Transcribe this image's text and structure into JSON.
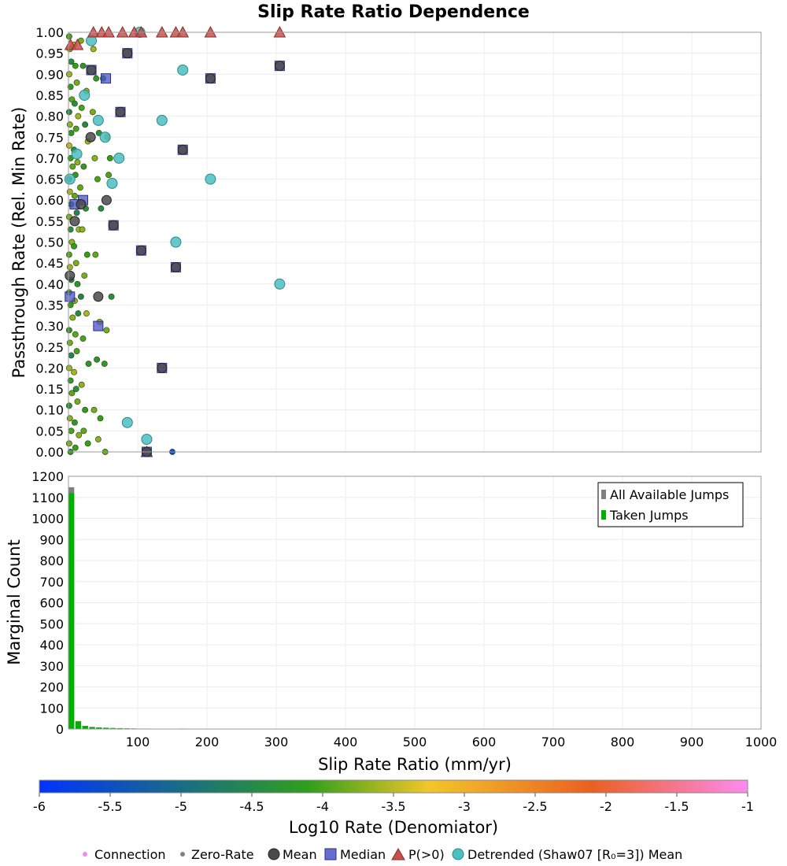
{
  "title": "Slip Rate Ratio Dependence",
  "colors": {
    "grid": "#ececec",
    "frame": "#9a9a9a",
    "mean": "#4a4a4a",
    "median": "#4b52c8",
    "p_gt_0": "#c8504c",
    "detrended": "#4bbec0",
    "connection": "#ef8bef",
    "zero_rate": "#808080",
    "all_jumps": "#808080",
    "taken_jumps": "#00b000",
    "colorbar": [
      "#0033ff",
      "#2fa01a",
      "#f2c62a",
      "#ea6020",
      "#ff8af0"
    ]
  },
  "chart_data": [
    {
      "type": "scatter",
      "title": "Slip Rate Ratio Dependence",
      "ylabel": "Passthrough Rate (Rel. Min Rate)",
      "xlim": [
        0,
        1000
      ],
      "ylim": [
        0,
        1
      ],
      "yticks": [
        "0.00",
        "0.05",
        "0.10",
        "0.15",
        "0.20",
        "0.25",
        "0.30",
        "0.35",
        "0.40",
        "0.45",
        "0.50",
        "0.55",
        "0.60",
        "0.65",
        "0.70",
        "0.75",
        "0.80",
        "0.85",
        "0.90",
        "0.95",
        "1.00"
      ],
      "series": [
        {
          "name": "Mean",
          "points": [
            [
              2,
              0.42
            ],
            [
              9,
              0.55
            ],
            [
              18,
              0.59
            ],
            [
              32,
              0.75
            ],
            [
              33,
              0.91
            ],
            [
              43,
              0.37
            ],
            [
              55,
              0.6
            ],
            [
              65,
              0.54
            ],
            [
              75,
              0.81
            ],
            [
              85,
              0.95
            ],
            [
              105,
              0.48
            ],
            [
              135,
              0.2
            ],
            [
              155,
              0.44
            ],
            [
              165,
              0.72
            ],
            [
              205,
              0.89
            ],
            [
              305,
              0.92
            ],
            [
              113,
              0.0
            ]
          ]
        },
        {
          "name": "Median",
          "points": [
            [
              2,
              0.37
            ],
            [
              9,
              0.59
            ],
            [
              21,
              0.6
            ],
            [
              33,
              0.91
            ],
            [
              43,
              0.3
            ],
            [
              54,
              0.89
            ],
            [
              65,
              0.54
            ],
            [
              75,
              0.81
            ],
            [
              85,
              0.95
            ],
            [
              105,
              0.48
            ],
            [
              135,
              0.2
            ],
            [
              155,
              0.44
            ],
            [
              165,
              0.72
            ],
            [
              205,
              0.89
            ],
            [
              305,
              0.92
            ],
            [
              113,
              0.0
            ]
          ]
        },
        {
          "name": "P(>0)",
          "points": [
            [
              3,
              0.97
            ],
            [
              13,
              0.97
            ],
            [
              36,
              1.0
            ],
            [
              48,
              1.0
            ],
            [
              58,
              1.0
            ],
            [
              78,
              1.0
            ],
            [
              95,
              1.0
            ],
            [
              105,
              1.0
            ],
            [
              135,
              1.0
            ],
            [
              155,
              1.0
            ],
            [
              165,
              1.0
            ],
            [
              205,
              1.0
            ],
            [
              305,
              1.0
            ],
            [
              113,
              0.0
            ]
          ]
        },
        {
          "name": "Detrended (Shaw07 [R₀=3]) Mean",
          "points": [
            [
              2,
              0.65
            ],
            [
              12,
              0.71
            ],
            [
              23,
              0.85
            ],
            [
              33,
              0.98
            ],
            [
              43,
              0.79
            ],
            [
              53,
              0.75
            ],
            [
              63,
              0.64
            ],
            [
              73,
              0.7
            ],
            [
              85,
              0.07
            ],
            [
              103,
              1.0
            ],
            [
              113,
              0.03
            ],
            [
              135,
              0.79
            ],
            [
              155,
              0.5
            ],
            [
              165,
              0.91
            ],
            [
              205,
              0.65
            ],
            [
              305,
              0.4
            ]
          ]
        }
      ],
      "colored_points": [
        [
          1,
          0.99,
          -4.0
        ],
        [
          2,
          0.96,
          -3.8
        ],
        [
          4,
          0.93,
          -4.5
        ],
        [
          1,
          0.9,
          -3.6
        ],
        [
          3,
          0.87,
          -4.2
        ],
        [
          5,
          0.84,
          -3.9
        ],
        [
          1,
          0.81,
          -4.6
        ],
        [
          2,
          0.78,
          -3.7
        ],
        [
          4,
          0.76,
          -4.3
        ],
        [
          1,
          0.73,
          -3.5
        ],
        [
          3,
          0.7,
          -4.1
        ],
        [
          6,
          0.68,
          -3.9
        ],
        [
          1,
          0.65,
          -4.7
        ],
        [
          2,
          0.62,
          -3.6
        ],
        [
          4,
          0.59,
          -4.2
        ],
        [
          1,
          0.56,
          -3.8
        ],
        [
          3,
          0.53,
          -4.4
        ],
        [
          5,
          0.5,
          -3.7
        ],
        [
          1,
          0.47,
          -4.0
        ],
        [
          2,
          0.44,
          -3.6
        ],
        [
          4,
          0.41,
          -4.5
        ],
        [
          1,
          0.38,
          -3.9
        ],
        [
          3,
          0.35,
          -4.1
        ],
        [
          6,
          0.32,
          -3.7
        ],
        [
          1,
          0.29,
          -4.3
        ],
        [
          2,
          0.26,
          -3.8
        ],
        [
          4,
          0.23,
          -4.6
        ],
        [
          1,
          0.2,
          -3.6
        ],
        [
          3,
          0.17,
          -4.2
        ],
        [
          5,
          0.14,
          -3.9
        ],
        [
          1,
          0.11,
          -4.4
        ],
        [
          2,
          0.08,
          -3.7
        ],
        [
          4,
          0.05,
          -4.0
        ],
        [
          1,
          0.02,
          -3.8
        ],
        [
          3,
          0.0,
          -4.3
        ],
        [
          8,
          0.97,
          -3.5
        ],
        [
          10,
          0.92,
          -4.1
        ],
        [
          12,
          0.88,
          -3.8
        ],
        [
          9,
          0.83,
          -4.4
        ],
        [
          14,
          0.8,
          -3.6
        ],
        [
          11,
          0.77,
          -4.0
        ],
        [
          8,
          0.72,
          -4.5
        ],
        [
          13,
          0.69,
          -3.7
        ],
        [
          10,
          0.66,
          -4.2
        ],
        [
          9,
          0.61,
          -3.9
        ],
        [
          12,
          0.57,
          -4.6
        ],
        [
          15,
          0.53,
          -3.6
        ],
        [
          8,
          0.49,
          -4.1
        ],
        [
          11,
          0.45,
          -3.8
        ],
        [
          13,
          0.4,
          -4.3
        ],
        [
          9,
          0.36,
          -3.7
        ],
        [
          14,
          0.33,
          -4.5
        ],
        [
          10,
          0.28,
          -3.9
        ],
        [
          12,
          0.24,
          -4.0
        ],
        [
          8,
          0.19,
          -3.6
        ],
        [
          11,
          0.15,
          -4.4
        ],
        [
          13,
          0.12,
          -3.8
        ],
        [
          9,
          0.07,
          -4.2
        ],
        [
          15,
          0.04,
          -3.7
        ],
        [
          10,
          0.01,
          -4.1
        ],
        [
          18,
          0.98,
          -3.8
        ],
        [
          21,
          0.92,
          -4.3
        ],
        [
          26,
          0.86,
          -3.7
        ],
        [
          19,
          0.82,
          -4.0
        ],
        [
          24,
          0.78,
          -4.5
        ],
        [
          28,
          0.74,
          -3.6
        ],
        [
          22,
          0.68,
          -4.2
        ],
        [
          17,
          0.63,
          -3.9
        ],
        [
          25,
          0.58,
          -4.4
        ],
        [
          20,
          0.53,
          -3.7
        ],
        [
          27,
          0.47,
          -4.1
        ],
        [
          23,
          0.42,
          -3.8
        ],
        [
          18,
          0.37,
          -4.6
        ],
        [
          26,
          0.33,
          -3.6
        ],
        [
          21,
          0.27,
          -4.0
        ],
        [
          29,
          0.21,
          -4.3
        ],
        [
          19,
          0.16,
          -3.7
        ],
        [
          24,
          0.1,
          -4.2
        ],
        [
          22,
          0.05,
          -3.9
        ],
        [
          28,
          0.02,
          -4.1
        ],
        [
          36,
          0.96,
          -3.6
        ],
        [
          40,
          0.89,
          -4.2
        ],
        [
          35,
          0.81,
          -3.8
        ],
        [
          44,
          0.76,
          -4.4
        ],
        [
          38,
          0.7,
          -3.7
        ],
        [
          42,
          0.65,
          -4.0
        ],
        [
          47,
          0.58,
          -4.5
        ],
        [
          39,
          0.47,
          -3.9
        ],
        [
          45,
          0.31,
          -3.6
        ],
        [
          41,
          0.22,
          -4.3
        ],
        [
          37,
          0.1,
          -3.8
        ],
        [
          46,
          0.08,
          -4.1
        ],
        [
          43,
          0.03,
          -3.7
        ],
        [
          50,
          0.89,
          -4.3
        ],
        [
          56,
          0.75,
          -3.7
        ],
        [
          60,
          0.7,
          -4.1
        ],
        [
          62,
          0.37,
          -4.4
        ],
        [
          52,
          0.21,
          -4.2
        ],
        [
          55,
          0.29,
          -3.8
        ],
        [
          53,
          0.0,
          -3.9
        ],
        [
          58,
          0.66,
          -4.0
        ],
        [
          110,
          0.0,
          -3.0
        ],
        [
          150,
          0.0,
          -5.6
        ]
      ]
    },
    {
      "type": "bar",
      "ylabel": "Marginal Count",
      "xlabel": "Slip Rate Ratio (mm/yr)",
      "xlim": [
        0,
        1000
      ],
      "ylim": [
        0,
        1200
      ],
      "xticks": [
        "100",
        "200",
        "300",
        "400",
        "500",
        "600",
        "700",
        "800",
        "900",
        "1000"
      ],
      "yticks": [
        "0",
        "100",
        "200",
        "300",
        "400",
        "500",
        "600",
        "700",
        "800",
        "900",
        "1000",
        "1100",
        "1200"
      ],
      "legend_position": "top-right",
      "bin_width": 10,
      "series": [
        {
          "name": "All Available Jumps",
          "values": [
            1148,
            38,
            15,
            10,
            8,
            6,
            5,
            4,
            3,
            3,
            2,
            2,
            1,
            1,
            1,
            1,
            2,
            1,
            1,
            1,
            1,
            0,
            0,
            0,
            0,
            0,
            0,
            0,
            0,
            0,
            1
          ]
        },
        {
          "name": "Taken Jumps",
          "values": [
            1120,
            35,
            14,
            9,
            7,
            6,
            4,
            4,
            3,
            2,
            2,
            2,
            1,
            1,
            1,
            1,
            2,
            1,
            1,
            1,
            1,
            0,
            0,
            0,
            0,
            0,
            0,
            0,
            0,
            0,
            1
          ]
        }
      ]
    }
  ],
  "colorbar": {
    "label": "Log10 Rate (Denomiator)",
    "min": -6,
    "max": -1,
    "ticks": [
      "-6",
      "-5.5",
      "-5",
      "-4.5",
      "-4",
      "-3.5",
      "-3",
      "-2.5",
      "-2",
      "-1.5",
      "-1"
    ]
  },
  "legend": {
    "connection": "Connection",
    "zero_rate": "Zero-Rate",
    "mean": "Mean",
    "median": "Median",
    "p_gt_0": "P(>0)",
    "detrended": "Detrended (Shaw07 [R₀=3]) Mean"
  }
}
